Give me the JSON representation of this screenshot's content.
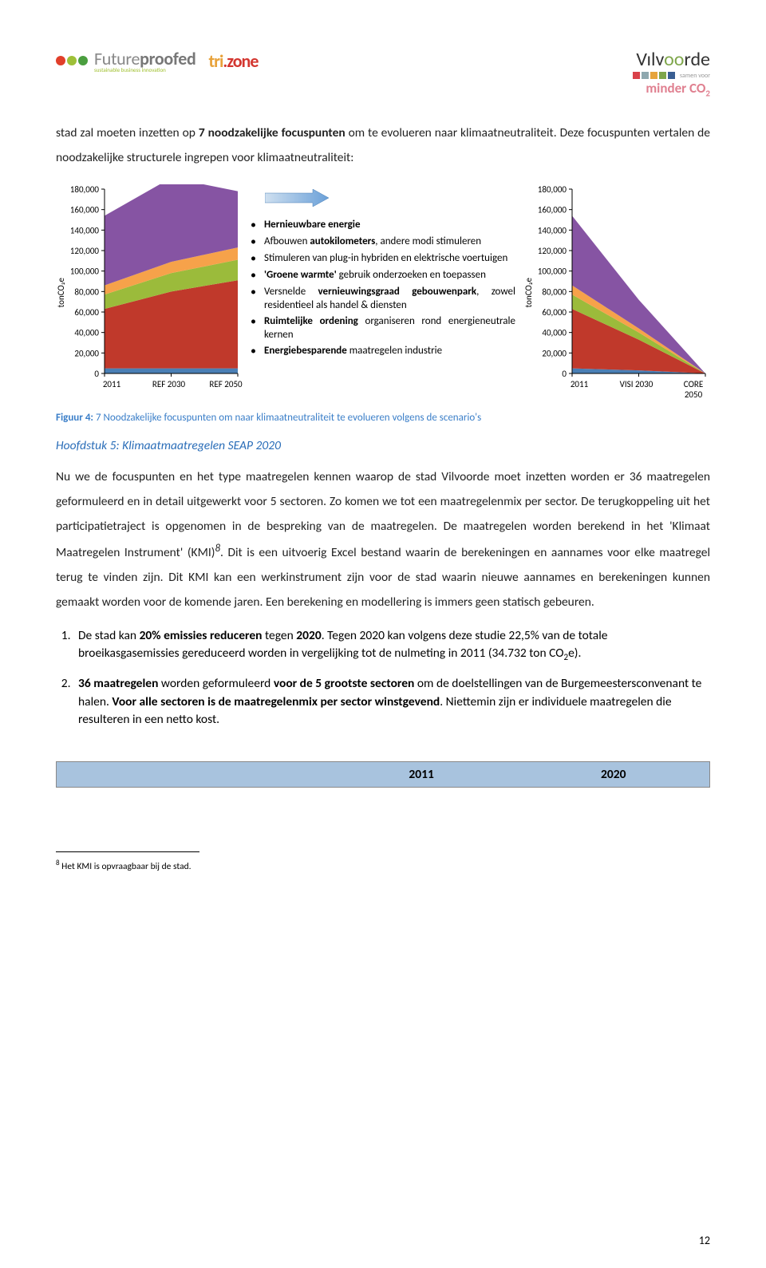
{
  "header": {
    "dots": [
      "#e13f2a",
      "#9ec038",
      "#4a9e3f"
    ],
    "futureproofed": "Futureproofed",
    "futureproofed_sub": "sustainable business innovation",
    "tri": {
      "text": "tri.zone",
      "c1": "#e8a23a",
      "c2": "#d3362f"
    },
    "vilvoorde": "Vilvoorde",
    "vil_squares": [
      "#d9414a",
      "#8ea8af",
      "#e6a43c",
      "#7ea64a",
      "#395e92"
    ],
    "samen": "samen voor",
    "minder": "minder CO",
    "minder_sub": "2"
  },
  "intro": {
    "pre": "stad zal moeten inzetten op ",
    "bold": "7 noodzakelijke focuspunten",
    "post": " om te evolueren naar klimaatneutraliteit. Deze focuspunten vertalen de noodzakelijke structurele ingrepen voor klimaatneutraliteit:"
  },
  "chart": {
    "ymax": 180000,
    "ytick": 20000,
    "ylabel": "tonCO₂e",
    "colors": {
      "purple": "#8654a3",
      "orange": "#f6a24a",
      "green": "#9bbb3b",
      "red": "#c0392b",
      "blue": "#4a7fb5"
    },
    "left": {
      "labels": [
        "2011",
        "REF 2030",
        "REF 2050"
      ],
      "series": {
        "blue": [
          5000,
          5000,
          5000
        ],
        "red": [
          58000,
          75000,
          86000
        ],
        "green": [
          14000,
          18000,
          20000
        ],
        "orange": [
          9000,
          11000,
          12000
        ],
        "purple": [
          68000,
          82000,
          55000
        ]
      }
    },
    "right": {
      "labels": [
        "2011",
        "VISI 2030",
        "CORE 2050"
      ],
      "series": {
        "blue": [
          5000,
          3000,
          0
        ],
        "red": [
          58000,
          30000,
          0
        ],
        "green": [
          14000,
          7000,
          0
        ],
        "orange": [
          9000,
          4000,
          0
        ],
        "purple": [
          68000,
          28000,
          0
        ]
      }
    }
  },
  "bullets": [
    {
      "b": "Hernieuwbare energie",
      "rest": ""
    },
    {
      "b": "",
      "rest": "Afbouwen ",
      "b2": "autokilometers",
      "rest2": ", andere modi stimuleren"
    },
    {
      "b": "",
      "rest": "Stimuleren van plug-in hybriden en elektrische voertuigen"
    },
    {
      "b": "'Groene warmte'",
      "rest": " gebruik onderzoeken en toepassen"
    },
    {
      "b": "",
      "rest": "Versnelde ",
      "b2": "vernieuwingsgraad gebouwenpark",
      "rest2": ", zowel residentieel als handel & diensten"
    },
    {
      "b": "Ruimtelijke ordening",
      "rest": " organiseren rond energieneutrale kernen"
    },
    {
      "b": "Energiebesparende",
      "rest": " maatregelen industrie"
    }
  ],
  "fig_caption": {
    "label": "Figuur 4:",
    "text": " 7 Noodzakelijke focuspunten om naar klimaatneutraliteit te evolueren volgens de scenario's"
  },
  "section": "Hoofdstuk 5: Klimaatmaatregelen SEAP 2020",
  "para": "Nu we de focuspunten en het type maatregelen kennen waarop de stad Vilvoorde moet inzetten worden er 36 maatregelen geformuleerd en in detail uitgewerkt voor 5 sectoren. Zo komen we tot een maatregelenmix per sector. De terugkoppeling uit het participatietraject is opgenomen in de bespreking van de maatregelen. De maatregelen worden berekend in het 'Klimaat Maatregelen Instrument' (KMI)",
  "fn_mark": "8",
  "para2": ". Dit is een uitvoerig Excel bestand waarin de berekeningen en aannames voor elke maatregel terug te vinden zijn. Dit KMI kan een werkinstrument zijn voor de stad waarin nieuwe aannames en berekeningen kunnen gemaakt worden voor de komende jaren. Een berekening en modellering is immers geen statisch gebeuren.",
  "list": [
    {
      "pre": "De stad kan ",
      "b": "20% emissies reduceren",
      "mid": " tegen ",
      "b2": "2020",
      "post": ". Tegen 2020 kan volgens deze studie 22,5% van de totale broeikasgasemissies gereduceerd worden in vergelijking tot de nulmeting in 2011 (34.732 ton CO",
      "sub": "2",
      "post2": "e)."
    },
    {
      "b": "36 maatregelen",
      "mid": " worden geformuleerd ",
      "b2": "voor de 5 grootste sectoren",
      "post": " om de doelstellingen van de Burgemeestersconvenant te halen. ",
      "b3": "Voor alle sectoren is de maatregelenmix per sector winstgevend",
      "post2": ". Niettemin zijn er individuele maatregelen die resulteren in een netto kost."
    }
  ],
  "table": {
    "c1": "2011",
    "c2": "2020"
  },
  "footnote": {
    "mark": "8",
    "text": " Het KMI is opvraagbaar bij de stad."
  },
  "pagenum": "12"
}
